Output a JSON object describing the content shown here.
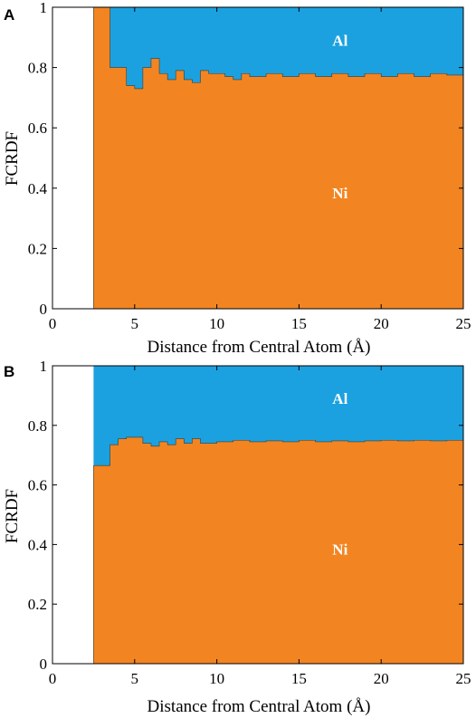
{
  "chart_data": [
    {
      "panel": "A",
      "type": "area",
      "xlabel": "Distance from Central Atom (Å)",
      "ylabel": "FCRDF",
      "xlim": [
        0,
        25
      ],
      "ylim": [
        0,
        1
      ],
      "xticks": [
        "0",
        "5",
        "10",
        "15",
        "20",
        "25"
      ],
      "yticks": [
        "0",
        "0.2",
        "0.4",
        "0.6",
        "0.8",
        "1"
      ],
      "x_start": 2.5,
      "x_end": 25,
      "series": [
        {
          "name": "Ni",
          "color": "#F28522"
        },
        {
          "name": "Al",
          "color": "#1BA1DF"
        }
      ],
      "x": [
        2.5,
        3.5,
        4.5,
        5.0,
        5.5,
        6.0,
        6.5,
        7.0,
        7.5,
        8.0,
        8.5,
        9.0,
        9.5,
        10.0,
        10.5,
        11.0,
        11.5,
        12.0,
        13.0,
        14.0,
        15.0,
        16.0,
        17.0,
        18.0,
        19.0,
        20.0,
        21.0,
        22.0,
        23.0,
        24.0
      ],
      "ni_fraction": [
        1.0,
        0.8,
        0.74,
        0.73,
        0.8,
        0.83,
        0.78,
        0.76,
        0.79,
        0.76,
        0.75,
        0.79,
        0.78,
        0.78,
        0.77,
        0.76,
        0.78,
        0.77,
        0.78,
        0.77,
        0.78,
        0.77,
        0.78,
        0.77,
        0.78,
        0.77,
        0.78,
        0.77,
        0.78,
        0.775
      ]
    },
    {
      "panel": "B",
      "type": "area",
      "xlabel": "Distance from Central Atom (Å)",
      "ylabel": "FCRDF",
      "xlim": [
        0,
        25
      ],
      "ylim": [
        0,
        1
      ],
      "xticks": [
        "0",
        "5",
        "10",
        "15",
        "20",
        "25"
      ],
      "yticks": [
        "0",
        "0.2",
        "0.4",
        "0.6",
        "0.8",
        "1"
      ],
      "x_start": 2.5,
      "x_end": 25,
      "series": [
        {
          "name": "Ni",
          "color": "#F28522"
        },
        {
          "name": "Al",
          "color": "#1BA1DF"
        }
      ],
      "x": [
        2.5,
        3.5,
        4.0,
        4.5,
        5.5,
        6.0,
        6.5,
        7.0,
        7.5,
        8.0,
        8.5,
        9.0,
        10.0,
        11.0,
        12.0,
        13.0,
        14.0,
        15.0,
        16.0,
        17.0,
        18.0,
        19.0,
        20.0,
        21.0,
        22.0,
        23.0,
        24.0
      ],
      "ni_fraction": [
        0.665,
        0.735,
        0.755,
        0.76,
        0.74,
        0.73,
        0.745,
        0.735,
        0.755,
        0.74,
        0.755,
        0.74,
        0.745,
        0.75,
        0.745,
        0.748,
        0.745,
        0.75,
        0.745,
        0.748,
        0.745,
        0.748,
        0.75,
        0.748,
        0.75,
        0.748,
        0.75
      ]
    }
  ]
}
